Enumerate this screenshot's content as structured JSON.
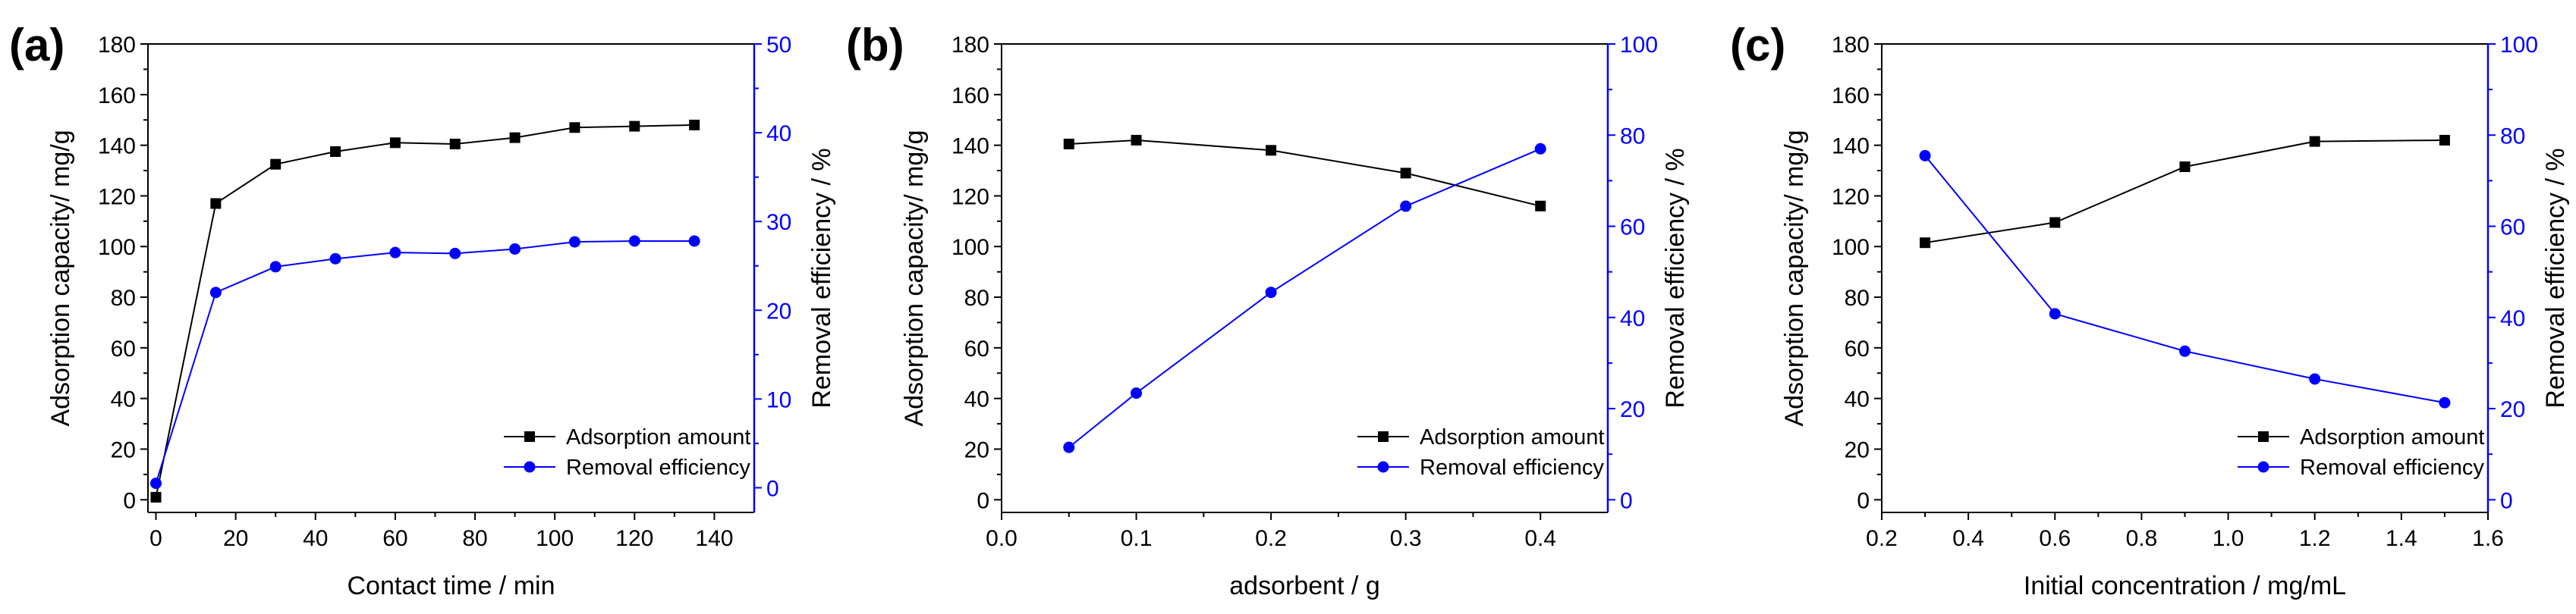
{
  "colors": {
    "black_series": "#000000",
    "blue_series": "#0000ff",
    "axis": "#000000"
  },
  "chart_data": [
    {
      "type": "line",
      "panel_label": "(a)",
      "xlabel": "Contact time / min",
      "ylabel_left": "Adsorption capacity/ mg/g",
      "ylabel_right": "Removal efficiency / %",
      "xlim": [
        -2,
        150
      ],
      "ylim_left": [
        -5,
        180
      ],
      "ylim_right": [
        -2.78,
        50
      ],
      "xticks": [
        0,
        20,
        40,
        60,
        80,
        100,
        120,
        140
      ],
      "xtick_labels": [
        "0",
        "20",
        "40",
        "60",
        "80",
        "100",
        "120",
        "140"
      ],
      "yticks_left": [
        0,
        20,
        40,
        60,
        80,
        100,
        120,
        140,
        160,
        180
      ],
      "ytick_labels_left": [
        "0",
        "20",
        "40",
        "60",
        "80",
        "100",
        "120",
        "140",
        "160",
        "180"
      ],
      "yticks_right": [
        0,
        10,
        20,
        30,
        40,
        50
      ],
      "ytick_labels_right": [
        "0",
        "10",
        "20",
        "30",
        "40",
        "50"
      ],
      "legend_position": "bottom-right",
      "series": [
        {
          "name": "Adsorption amount",
          "axis": "left",
          "marker": "square",
          "color": "#000000",
          "x": [
            0,
            15,
            30,
            45,
            60,
            75,
            90,
            105,
            120,
            135
          ],
          "y": [
            1,
            117,
            132.5,
            137.5,
            141,
            140.5,
            143,
            147,
            147.5,
            148
          ]
        },
        {
          "name": "Removal efficiency",
          "axis": "right",
          "marker": "circle",
          "color": "#0000ff",
          "x": [
            0,
            15,
            30,
            45,
            60,
            75,
            90,
            105,
            120,
            135
          ],
          "y": [
            0.5,
            22,
            24.9,
            25.8,
            26.5,
            26.4,
            26.9,
            27.7,
            27.8,
            27.8
          ]
        }
      ]
    },
    {
      "type": "line",
      "panel_label": "(b)",
      "xlabel": "adsorbent / g",
      "ylabel_left": "Adsorption capacity/ mg/g",
      "ylabel_right": "Removal efficiency / %",
      "xlim": [
        0,
        0.45
      ],
      "ylim_left": [
        -5,
        180
      ],
      "ylim_right": [
        -2.78,
        100
      ],
      "xticks": [
        0,
        0.1,
        0.2,
        0.3,
        0.4
      ],
      "xtick_labels": [
        "0.0",
        "0.1",
        "0.2",
        "0.3",
        "0.4"
      ],
      "yticks_left": [
        0,
        20,
        40,
        60,
        80,
        100,
        120,
        140,
        160,
        180
      ],
      "ytick_labels_left": [
        "0",
        "20",
        "40",
        "60",
        "80",
        "100",
        "120",
        "140",
        "160",
        "180"
      ],
      "yticks_right": [
        0,
        20,
        40,
        60,
        80,
        100
      ],
      "ytick_labels_right": [
        "0",
        "20",
        "40",
        "60",
        "80",
        "100"
      ],
      "legend_position": "bottom-right",
      "series": [
        {
          "name": "Adsorption amount",
          "axis": "left",
          "marker": "square",
          "color": "#000000",
          "x": [
            0.05,
            0.1,
            0.2,
            0.3,
            0.4
          ],
          "y": [
            140.5,
            142,
            138,
            129,
            116
          ]
        },
        {
          "name": "Removal efficiency",
          "axis": "right",
          "marker": "circle",
          "color": "#0000ff",
          "x": [
            0.05,
            0.1,
            0.2,
            0.3,
            0.4
          ],
          "y": [
            11.5,
            23.4,
            45.5,
            64.4,
            77
          ]
        }
      ]
    },
    {
      "type": "line",
      "panel_label": "(c)",
      "xlabel": "Initial concentration / mg/mL",
      "ylabel_left": "Adsorption capacity/ mg/g",
      "ylabel_right": "Removal efficiency / %",
      "xlim": [
        0.2,
        1.6
      ],
      "ylim_left": [
        -5,
        180
      ],
      "ylim_right": [
        -2.78,
        100
      ],
      "xticks": [
        0.2,
        0.4,
        0.6,
        0.8,
        1.0,
        1.2,
        1.4,
        1.6
      ],
      "xtick_labels": [
        "0.2",
        "0.4",
        "0.6",
        "0.8",
        "1.0",
        "1.2",
        "1.4",
        "1.6"
      ],
      "yticks_left": [
        0,
        20,
        40,
        60,
        80,
        100,
        120,
        140,
        160,
        180
      ],
      "ytick_labels_left": [
        "0",
        "20",
        "40",
        "60",
        "80",
        "100",
        "120",
        "140",
        "160",
        "180"
      ],
      "yticks_right": [
        0,
        20,
        40,
        60,
        80,
        100
      ],
      "ytick_labels_right": [
        "0",
        "20",
        "40",
        "60",
        "80",
        "100"
      ],
      "legend_position": "bottom-right",
      "series": [
        {
          "name": "Adsorption amount",
          "axis": "left",
          "marker": "square",
          "color": "#000000",
          "x": [
            0.3,
            0.6,
            0.9,
            1.2,
            1.5
          ],
          "y": [
            101.5,
            109.5,
            131.5,
            141.5,
            142
          ]
        },
        {
          "name": "Removal efficiency",
          "axis": "right",
          "marker": "circle",
          "color": "#0000ff",
          "x": [
            0.3,
            0.6,
            0.9,
            1.2,
            1.5
          ],
          "y": [
            75.5,
            40.8,
            32.6,
            26.5,
            21.3
          ]
        }
      ]
    }
  ]
}
